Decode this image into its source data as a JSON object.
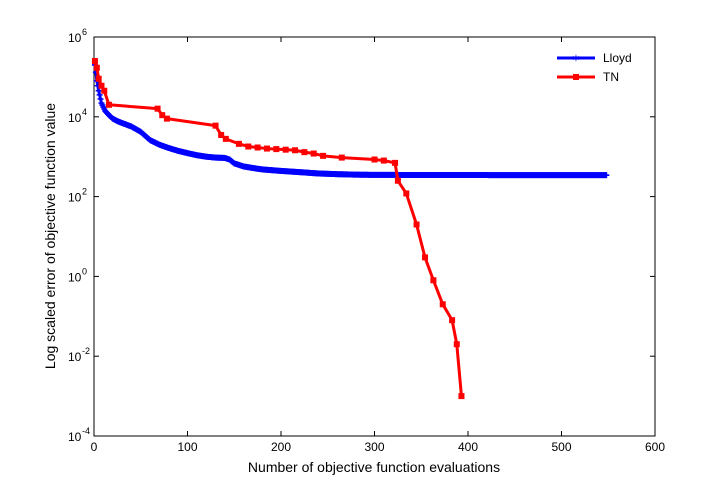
{
  "chart_data": {
    "type": "line",
    "title": "",
    "xlabel": "Number of objective function evaluations",
    "ylabel": "Log scaled error of objective function value",
    "xlim": [
      0,
      600
    ],
    "ylim_log10": [
      -4,
      6
    ],
    "y_scale": "log",
    "grid": false,
    "legend_position": "top-right",
    "x_ticks": [
      0,
      100,
      200,
      300,
      400,
      500,
      600
    ],
    "x_tick_labels": [
      "0",
      "100",
      "200",
      "300",
      "400",
      "500",
      "600"
    ],
    "y_ticks_log10": [
      -4,
      -2,
      0,
      2,
      4,
      6
    ],
    "y_tick_labels": [
      {
        "base": "10",
        "exp": "-4"
      },
      {
        "base": "10",
        "exp": "-2"
      },
      {
        "base": "10",
        "exp": "0"
      },
      {
        "base": "10",
        "exp": "2"
      },
      {
        "base": "10",
        "exp": "4"
      },
      {
        "base": "10",
        "exp": "6"
      }
    ],
    "series": [
      {
        "name": "Lloyd",
        "color": "#0000ff",
        "marker": "star",
        "x": [
          1,
          2,
          3,
          5,
          8,
          12,
          16,
          20,
          25,
          30,
          40,
          50,
          60,
          70,
          80,
          90,
          100,
          110,
          120,
          130,
          140,
          145,
          150,
          160,
          170,
          180,
          200,
          220,
          240,
          260,
          280,
          300,
          350,
          400,
          450,
          500,
          548
        ],
        "y": [
          200000,
          130000,
          80000,
          45000,
          22000,
          14000,
          11000,
          9000,
          7800,
          7000,
          5700,
          4200,
          2600,
          2000,
          1650,
          1400,
          1230,
          1090,
          1000,
          950,
          930,
          850,
          680,
          570,
          520,
          480,
          440,
          410,
          380,
          365,
          355,
          350,
          348,
          347,
          346,
          345,
          345
        ]
      },
      {
        "name": "TN",
        "color": "#ff0000",
        "marker": "square",
        "x": [
          1,
          3,
          5,
          8,
          11,
          16,
          68,
          73,
          78,
          130,
          136,
          141,
          155,
          165,
          175,
          185,
          195,
          205,
          215,
          225,
          235,
          245,
          265,
          300,
          310,
          322,
          325,
          334,
          345,
          354,
          363,
          373,
          383,
          388,
          393
        ],
        "y": [
          250000,
          170000,
          90000,
          60000,
          45000,
          20000,
          16000,
          11000,
          9000,
          6000,
          3500,
          2800,
          2100,
          1800,
          1700,
          1600,
          1550,
          1500,
          1450,
          1300,
          1200,
          1050,
          950,
          850,
          800,
          700,
          250,
          120,
          20,
          3,
          0.8,
          0.2,
          0.08,
          0.02,
          0.001
        ]
      }
    ]
  }
}
